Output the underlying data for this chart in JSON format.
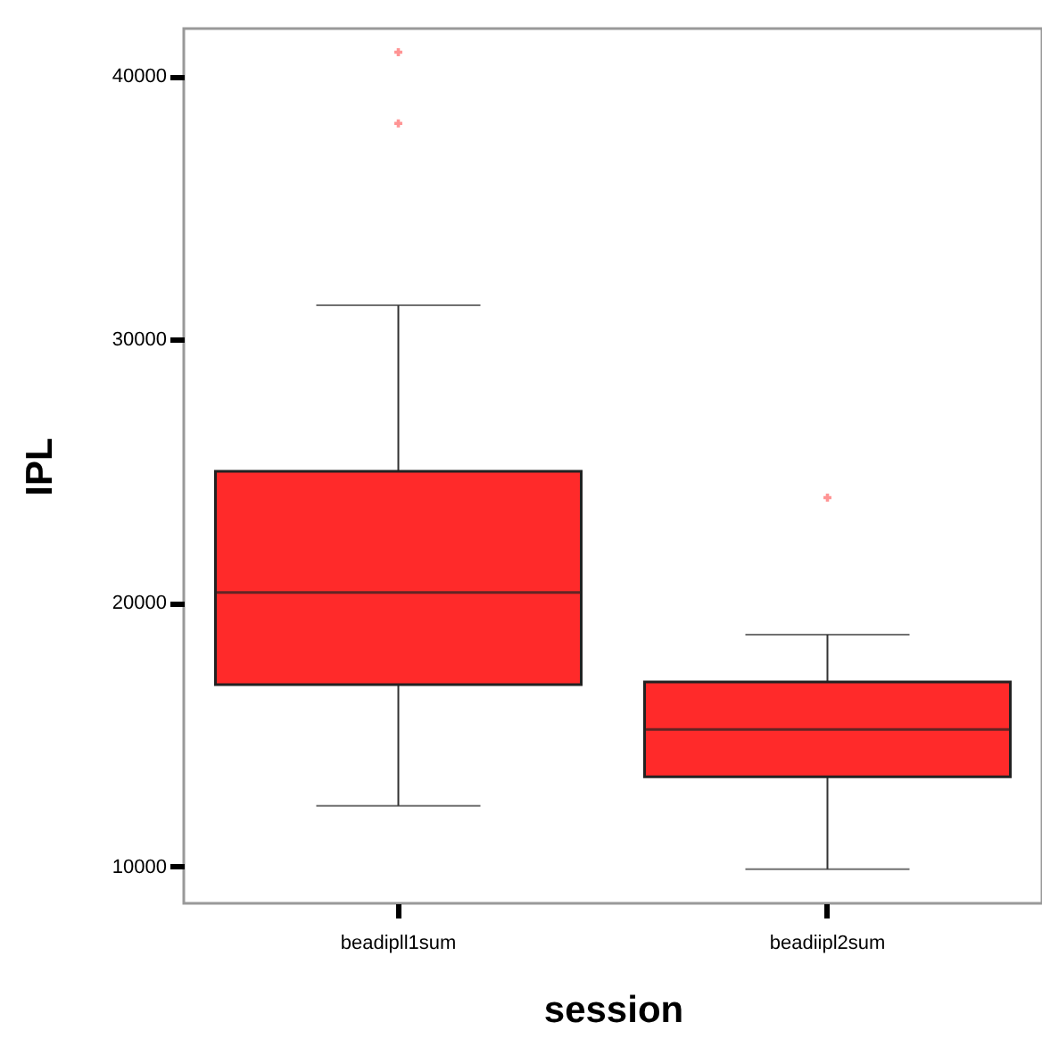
{
  "chart_data": {
    "type": "box",
    "xlabel": "session",
    "ylabel": "IPL",
    "categories": [
      "beadipll1sum",
      "beadiipl2sum"
    ],
    "ylim": [
      8600,
      41800
    ],
    "yticks": [
      10000,
      20000,
      30000,
      40000
    ],
    "grid": false,
    "series": [
      {
        "color": "#ff2a2a",
        "boxes": [
          {
            "low": 12300,
            "q1": 16900,
            "median": 20400,
            "q3": 25000,
            "high": 31300,
            "outliers": [
              38200,
              40900
            ]
          },
          {
            "low": 9900,
            "q1": 13400,
            "median": 15200,
            "q3": 17000,
            "high": 18800,
            "outliers": [
              24000
            ]
          }
        ]
      }
    ]
  }
}
